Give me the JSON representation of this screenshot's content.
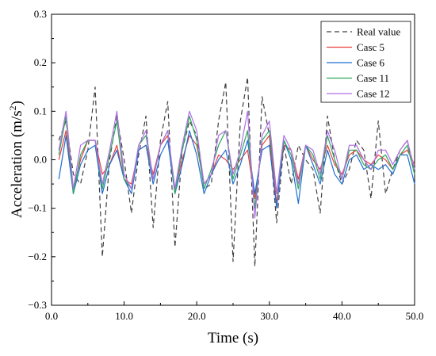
{
  "chart_data": {
    "type": "line",
    "title": "",
    "xlabel": "Time (s)",
    "ylabel_main": "Acceleration (m/s",
    "ylabel_sup": "2",
    "ylabel_tail": ")",
    "xlim": [
      0,
      50
    ],
    "ylim": [
      -0.3,
      0.3
    ],
    "x_ticks": [
      0,
      10,
      20,
      30,
      40,
      50
    ],
    "x_tick_labels": [
      "0.0",
      "10.0",
      "20.0",
      "30.0",
      "40.0",
      "50.0"
    ],
    "y_ticks": [
      -0.3,
      -0.2,
      -0.1,
      0,
      0.1,
      0.2,
      0.3
    ],
    "y_tick_labels": [
      "−0.3",
      "−0.2",
      "−0.1",
      "0.0",
      "0.1",
      "0.2",
      "0.3"
    ],
    "grid": false,
    "legend_position": "top-right",
    "x": [
      1,
      2,
      3,
      4,
      5,
      6,
      7,
      8,
      9,
      10,
      11,
      12,
      13,
      14,
      15,
      16,
      17,
      18,
      19,
      20,
      21,
      22,
      23,
      24,
      25,
      26,
      27,
      28,
      29,
      30,
      31,
      32,
      33,
      34,
      35,
      36,
      37,
      38,
      39,
      40,
      41,
      42,
      43,
      44,
      45,
      46,
      47,
      48,
      49,
      50
    ],
    "series": [
      {
        "name": "Real value",
        "color": "#404040",
        "dash": "6,4",
        "values": [
          0.04,
          0.08,
          -0.03,
          -0.05,
          0.02,
          0.15,
          -0.2,
          0.0,
          0.09,
          0.0,
          -0.11,
          0.01,
          0.09,
          -0.14,
          0.04,
          0.12,
          -0.18,
          0.02,
          0.08,
          0.05,
          -0.06,
          -0.05,
          0.08,
          0.16,
          -0.21,
          0.08,
          0.17,
          -0.22,
          0.13,
          0.05,
          -0.13,
          0.03,
          -0.05,
          0.03,
          0.0,
          -0.02,
          -0.11,
          0.09,
          0.0,
          -0.05,
          -0.02,
          0.04,
          0.02,
          -0.08,
          0.08,
          -0.07,
          -0.02,
          0.02,
          0.04,
          -0.03
        ]
      },
      {
        "name": "Casc 5",
        "color": "#e8403f",
        "dash": "",
        "values": [
          0.0,
          0.06,
          -0.06,
          0.0,
          0.04,
          0.04,
          -0.03,
          -0.01,
          0.03,
          -0.04,
          -0.05,
          0.02,
          0.03,
          -0.03,
          0.03,
          0.05,
          -0.06,
          0.0,
          0.05,
          0.03,
          -0.05,
          -0.03,
          0.01,
          0.0,
          -0.02,
          0.0,
          0.02,
          -0.08,
          0.03,
          0.05,
          -0.09,
          0.03,
          0.02,
          -0.04,
          0.03,
          0.0,
          -0.02,
          0.03,
          -0.01,
          -0.03,
          0.01,
          0.02,
          0.0,
          -0.01,
          0.01,
          0.0,
          -0.02,
          0.01,
          0.02,
          -0.01
        ]
      },
      {
        "name": "Case 6",
        "color": "#1f6fd4",
        "dash": "",
        "values": [
          -0.04,
          0.05,
          -0.07,
          -0.01,
          0.02,
          0.03,
          -0.07,
          -0.01,
          0.02,
          -0.04,
          -0.07,
          0.02,
          0.03,
          -0.05,
          0.01,
          0.04,
          -0.07,
          -0.01,
          0.06,
          0.01,
          -0.07,
          -0.03,
          0.0,
          0.02,
          -0.05,
          -0.01,
          0.04,
          -0.07,
          0.02,
          0.03,
          -0.1,
          0.04,
          0.0,
          -0.09,
          0.03,
          -0.01,
          -0.05,
          0.02,
          -0.03,
          -0.05,
          0.0,
          0.01,
          -0.02,
          -0.01,
          -0.02,
          -0.01,
          -0.03,
          0.01,
          0.01,
          -0.05
        ]
      },
      {
        "name": "Case 11",
        "color": "#2ea85a",
        "dash": "",
        "values": [
          0.01,
          0.09,
          -0.07,
          0.01,
          0.04,
          0.04,
          -0.06,
          0.01,
          0.08,
          -0.04,
          -0.06,
          0.03,
          0.05,
          -0.04,
          0.03,
          0.06,
          -0.07,
          0.02,
          0.09,
          0.04,
          -0.06,
          -0.02,
          0.03,
          0.06,
          -0.04,
          0.01,
          0.06,
          -0.1,
          0.04,
          0.06,
          -0.07,
          0.04,
          0.01,
          -0.06,
          0.03,
          0.01,
          -0.04,
          0.05,
          0.0,
          -0.04,
          0.02,
          0.02,
          -0.01,
          -0.02,
          0.0,
          0.01,
          -0.02,
          0.01,
          0.03,
          -0.03
        ]
      },
      {
        "name": "Case 12",
        "color": "#b06ee8",
        "dash": "",
        "values": [
          0.02,
          0.1,
          -0.06,
          0.03,
          0.04,
          0.04,
          -0.05,
          0.02,
          0.1,
          -0.03,
          -0.06,
          0.03,
          0.06,
          -0.04,
          0.03,
          0.06,
          -0.06,
          0.03,
          0.1,
          0.06,
          -0.05,
          -0.03,
          0.05,
          0.06,
          -0.03,
          0.02,
          0.1,
          -0.12,
          0.05,
          0.08,
          -0.07,
          0.05,
          0.02,
          -0.05,
          0.03,
          0.02,
          -0.03,
          0.06,
          0.02,
          -0.04,
          0.03,
          0.03,
          0.0,
          -0.02,
          0.02,
          0.02,
          -0.01,
          0.02,
          0.04,
          -0.02
        ]
      }
    ]
  }
}
